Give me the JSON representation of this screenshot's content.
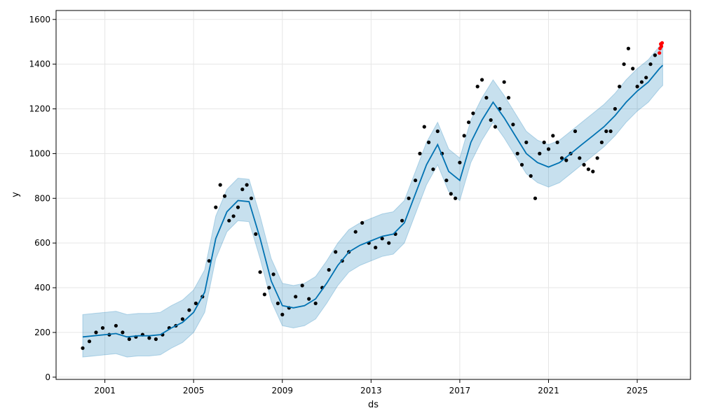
{
  "chart_data": {
    "type": "scatter",
    "title": "",
    "xlabel": "ds",
    "ylabel": "y",
    "xlim": [
      1998.8,
      2027.4
    ],
    "ylim": [
      -10,
      1640
    ],
    "grid": true,
    "x_ticks": [
      {
        "value": 2001,
        "label": "2001"
      },
      {
        "value": 2005,
        "label": "2005"
      },
      {
        "value": 2009,
        "label": "2009"
      },
      {
        "value": 2013,
        "label": "2013"
      },
      {
        "value": 2017,
        "label": "2017"
      },
      {
        "value": 2021,
        "label": "2021"
      },
      {
        "value": 2025,
        "label": "2025"
      }
    ],
    "y_ticks": [
      {
        "value": 0,
        "label": "0"
      },
      {
        "value": 200,
        "label": "200"
      },
      {
        "value": 400,
        "label": "400"
      },
      {
        "value": 600,
        "label": "600"
      },
      {
        "value": 800,
        "label": "800"
      },
      {
        "value": 1000,
        "label": "1000"
      },
      {
        "value": 1200,
        "label": "1200"
      },
      {
        "value": 1400,
        "label": "1400"
      },
      {
        "value": 1600,
        "label": "1600"
      }
    ],
    "colors": {
      "observed": "#000000",
      "forecast": "#0072B2",
      "interval": "#0072B2",
      "recent": "#ff0000"
    },
    "forecast": {
      "x": [
        2000.0,
        2000.5,
        2001.0,
        2001.5,
        2002.0,
        2002.5,
        2003.0,
        2003.5,
        2004.0,
        2004.5,
        2005.0,
        2005.5,
        2006.0,
        2006.5,
        2007.0,
        2007.5,
        2008.0,
        2008.5,
        2009.0,
        2009.5,
        2010.0,
        2010.5,
        2011.0,
        2011.5,
        2012.0,
        2012.5,
        2013.0,
        2013.5,
        2014.0,
        2014.5,
        2015.0,
        2015.5,
        2016.0,
        2016.5,
        2017.0,
        2017.5,
        2018.0,
        2018.5,
        2019.0,
        2019.5,
        2020.0,
        2020.5,
        2021.0,
        2021.5,
        2022.0,
        2022.5,
        2023.0,
        2023.5,
        2024.0,
        2024.5,
        2025.0,
        2025.5,
        2026.0,
        2026.15
      ],
      "yhat": [
        180,
        185,
        190,
        195,
        180,
        185,
        185,
        190,
        220,
        245,
        290,
        380,
        620,
        740,
        790,
        785,
        620,
        430,
        320,
        310,
        320,
        350,
        420,
        500,
        560,
        590,
        610,
        630,
        640,
        690,
        820,
        950,
        1040,
        920,
        880,
        1050,
        1150,
        1230,
        1160,
        1080,
        1000,
        960,
        940,
        960,
        1000,
        1040,
        1080,
        1120,
        1170,
        1230,
        1280,
        1320,
        1380,
        1395
      ],
      "lower": [
        90,
        95,
        100,
        105,
        90,
        95,
        95,
        100,
        130,
        155,
        200,
        290,
        530,
        650,
        700,
        695,
        530,
        340,
        230,
        220,
        230,
        260,
        330,
        410,
        470,
        500,
        520,
        540,
        550,
        600,
        730,
        860,
        950,
        830,
        790,
        960,
        1060,
        1140,
        1070,
        990,
        910,
        870,
        850,
        870,
        910,
        950,
        990,
        1030,
        1080,
        1140,
        1190,
        1230,
        1290,
        1305
      ],
      "upper": [
        280,
        285,
        290,
        295,
        280,
        285,
        285,
        290,
        320,
        345,
        390,
        480,
        720,
        840,
        890,
        885,
        720,
        530,
        420,
        410,
        420,
        450,
        520,
        600,
        660,
        690,
        710,
        730,
        740,
        790,
        920,
        1050,
        1140,
        1020,
        980,
        1150,
        1250,
        1330,
        1260,
        1180,
        1100,
        1060,
        1040,
        1060,
        1100,
        1140,
        1180,
        1220,
        1270,
        1330,
        1380,
        1420,
        1480,
        1495
      ]
    },
    "observed": {
      "x": [
        2000.0,
        2000.3,
        2000.6,
        2000.9,
        2001.2,
        2001.5,
        2001.8,
        2002.1,
        2002.4,
        2002.7,
        2003.0,
        2003.3,
        2003.6,
        2003.9,
        2004.2,
        2004.5,
        2004.8,
        2005.1,
        2005.4,
        2005.7,
        2006.0,
        2006.2,
        2006.4,
        2006.6,
        2006.8,
        2007.0,
        2007.2,
        2007.4,
        2007.6,
        2007.8,
        2008.0,
        2008.2,
        2008.4,
        2008.6,
        2008.8,
        2009.0,
        2009.3,
        2009.6,
        2009.9,
        2010.2,
        2010.5,
        2010.8,
        2011.1,
        2011.4,
        2011.7,
        2012.0,
        2012.3,
        2012.6,
        2012.9,
        2013.2,
        2013.5,
        2013.8,
        2014.1,
        2014.4,
        2014.7,
        2015.0,
        2015.2,
        2015.4,
        2015.6,
        2015.8,
        2016.0,
        2016.2,
        2016.4,
        2016.6,
        2016.8,
        2017.0,
        2017.2,
        2017.4,
        2017.6,
        2017.8,
        2018.0,
        2018.2,
        2018.4,
        2018.6,
        2018.8,
        2019.0,
        2019.2,
        2019.4,
        2019.6,
        2019.8,
        2020.0,
        2020.2,
        2020.4,
        2020.6,
        2020.8,
        2021.0,
        2021.2,
        2021.4,
        2021.6,
        2021.8,
        2022.0,
        2022.2,
        2022.4,
        2022.6,
        2022.8,
        2023.0,
        2023.2,
        2023.4,
        2023.6,
        2023.8,
        2024.0,
        2024.2,
        2024.4,
        2024.6,
        2024.8,
        2025.0,
        2025.2,
        2025.4,
        2025.6,
        2025.8
      ],
      "y": [
        130,
        160,
        200,
        220,
        190,
        230,
        200,
        170,
        180,
        190,
        175,
        170,
        190,
        220,
        230,
        260,
        300,
        330,
        360,
        520,
        760,
        860,
        810,
        700,
        720,
        760,
        840,
        860,
        800,
        640,
        470,
        370,
        400,
        460,
        330,
        280,
        310,
        360,
        410,
        350,
        330,
        400,
        480,
        560,
        520,
        560,
        650,
        690,
        600,
        580,
        620,
        600,
        640,
        700,
        800,
        880,
        1000,
        1120,
        1050,
        930,
        1100,
        1000,
        880,
        820,
        800,
        960,
        1080,
        1140,
        1180,
        1300,
        1330,
        1250,
        1150,
        1120,
        1200,
        1320,
        1250,
        1130,
        1000,
        950,
        1050,
        900,
        800,
        1000,
        1050,
        1020,
        1080,
        1050,
        980,
        970,
        1000,
        1100,
        980,
        950,
        930,
        920,
        980,
        1050,
        1100,
        1100,
        1200,
        1300,
        1400,
        1470,
        1380,
        1300,
        1320,
        1340,
        1400,
        1440
      ]
    },
    "recent": {
      "x": [
        2026.0,
        2026.03,
        2026.06,
        2026.09,
        2026.12
      ],
      "y": [
        1450,
        1470,
        1490,
        1480,
        1495
      ]
    }
  }
}
